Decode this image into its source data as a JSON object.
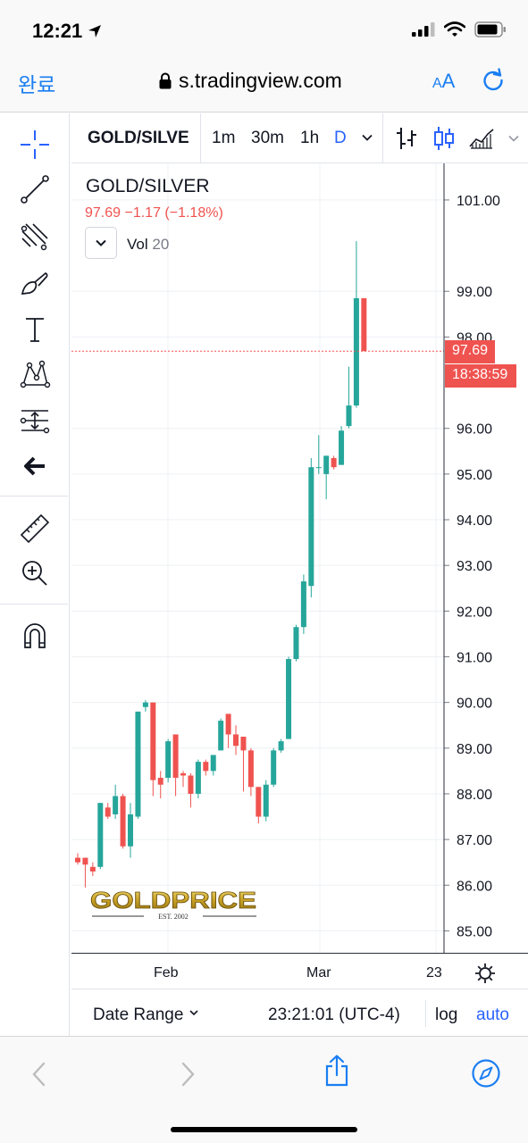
{
  "status": {
    "time": "12:21"
  },
  "browser": {
    "done_label": "완료",
    "url": "s.tradingview.com",
    "aa_small": "A",
    "aa_large": "A"
  },
  "toolbar": {
    "symbol": "GOLD/SILVE",
    "intervals": [
      "1m",
      "30m",
      "1h",
      "D"
    ],
    "active_interval": "D"
  },
  "legend": {
    "title": "GOLD/SILVER",
    "change": "97.69  −1.17 (−1.18%)",
    "vol_label": "Vol",
    "vol_value": "20"
  },
  "bottom_bar": {
    "date_range": "Date Range",
    "clock": "23:21:01 (UTC-4)",
    "log": "log",
    "auto": "auto"
  },
  "colors": {
    "up": "#26a69a",
    "down": "#ef5350",
    "accent": "#2962ff",
    "safari_blue": "#1a7ef2"
  },
  "chart_data": {
    "type": "candlestick",
    "title": "GOLD/SILVER",
    "ylim": [
      84.5,
      101.8
    ],
    "y_ticks": [
      "101.00",
      "99.00",
      "98.00",
      "96.00",
      "95.00",
      "94.00",
      "93.00",
      "92.00",
      "91.00",
      "90.00",
      "89.00",
      "88.00",
      "87.00",
      "86.00",
      "85.00"
    ],
    "x_ticks": [
      "Feb",
      "Mar",
      "23"
    ],
    "last_price": "97.69",
    "countdown": "18:38:59",
    "watermark": "GOLDPRICE",
    "watermark_sub": "EST. 2002",
    "candles": [
      {
        "o": 86.6,
        "h": 86.7,
        "l": 86.45,
        "c": 86.5
      },
      {
        "o": 86.6,
        "h": 86.6,
        "l": 85.95,
        "c": 86.45
      },
      {
        "o": 86.4,
        "h": 86.5,
        "l": 86.2,
        "c": 86.3
      },
      {
        "o": 86.4,
        "h": 87.8,
        "l": 86.35,
        "c": 87.8
      },
      {
        "o": 87.7,
        "h": 87.8,
        "l": 87.45,
        "c": 87.5
      },
      {
        "o": 87.55,
        "h": 88.2,
        "l": 87.45,
        "c": 87.95
      },
      {
        "o": 87.95,
        "h": 88.0,
        "l": 86.8,
        "c": 86.85
      },
      {
        "o": 86.85,
        "h": 87.8,
        "l": 86.6,
        "c": 87.55
      },
      {
        "o": 87.5,
        "h": 89.8,
        "l": 87.45,
        "c": 89.8
      },
      {
        "o": 89.9,
        "h": 90.05,
        "l": 89.8,
        "c": 90.0
      },
      {
        "o": 90.0,
        "h": 90.0,
        "l": 87.95,
        "c": 88.3
      },
      {
        "o": 88.35,
        "h": 88.5,
        "l": 87.9,
        "c": 88.2
      },
      {
        "o": 88.35,
        "h": 89.2,
        "l": 88.25,
        "c": 89.15
      },
      {
        "o": 89.3,
        "h": 89.3,
        "l": 87.95,
        "c": 88.35
      },
      {
        "o": 88.45,
        "h": 88.5,
        "l": 88.15,
        "c": 88.4
      },
      {
        "o": 88.4,
        "h": 88.45,
        "l": 87.7,
        "c": 88.0
      },
      {
        "o": 88.0,
        "h": 88.75,
        "l": 87.9,
        "c": 88.7
      },
      {
        "o": 88.7,
        "h": 88.75,
        "l": 88.4,
        "c": 88.5
      },
      {
        "o": 88.5,
        "h": 88.85,
        "l": 88.4,
        "c": 88.85
      },
      {
        "o": 88.95,
        "h": 89.65,
        "l": 88.95,
        "c": 89.6
      },
      {
        "o": 89.75,
        "h": 89.75,
        "l": 89.0,
        "c": 89.3
      },
      {
        "o": 89.3,
        "h": 89.5,
        "l": 88.85,
        "c": 89.05
      },
      {
        "o": 89.25,
        "h": 89.25,
        "l": 88.05,
        "c": 88.95
      },
      {
        "o": 88.95,
        "h": 89.0,
        "l": 87.95,
        "c": 88.15
      },
      {
        "o": 88.15,
        "h": 88.15,
        "l": 87.35,
        "c": 87.5
      },
      {
        "o": 87.5,
        "h": 88.3,
        "l": 87.4,
        "c": 88.2
      },
      {
        "o": 88.2,
        "h": 89.0,
        "l": 88.15,
        "c": 88.95
      },
      {
        "o": 88.95,
        "h": 89.2,
        "l": 88.9,
        "c": 89.15
      },
      {
        "o": 89.2,
        "h": 91.0,
        "l": 89.2,
        "c": 90.95
      },
      {
        "o": 90.95,
        "h": 91.7,
        "l": 90.9,
        "c": 91.65
      },
      {
        "o": 91.65,
        "h": 92.8,
        "l": 91.5,
        "c": 92.65
      },
      {
        "o": 92.55,
        "h": 95.35,
        "l": 92.3,
        "c": 95.15
      },
      {
        "o": 95.15,
        "h": 95.85,
        "l": 95.0,
        "c": 95.15
      },
      {
        "o": 95.0,
        "h": 95.4,
        "l": 94.45,
        "c": 95.4
      },
      {
        "o": 95.35,
        "h": 95.4,
        "l": 95.1,
        "c": 95.15
      },
      {
        "o": 95.2,
        "h": 96.05,
        "l": 95.2,
        "c": 95.95
      },
      {
        "o": 96.05,
        "h": 97.35,
        "l": 96.0,
        "c": 96.5
      },
      {
        "o": 96.5,
        "h": 100.1,
        "l": 96.45,
        "c": 98.85
      },
      {
        "o": 98.85,
        "h": 98.85,
        "l": 97.7,
        "c": 97.69
      }
    ]
  }
}
